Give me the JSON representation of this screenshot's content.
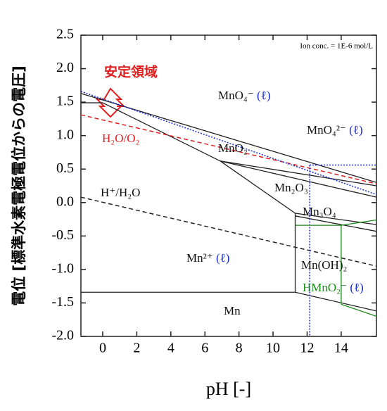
{
  "chart_data": {
    "type": "line",
    "y_label": "電位 [標準水素電極電位からの電圧]",
    "x_label": "pH [-]",
    "note": "Ion conc. = 1E-6 mol/L",
    "stable_label": "安定領域",
    "xlim": [
      -1.28,
      16.07
    ],
    "xticks": [
      0,
      2,
      4,
      6,
      8,
      10,
      12,
      14
    ],
    "ylim": [
      -2.0,
      2.5
    ],
    "yticks": [
      2.5,
      {
        "value": 2.0,
        "label": "2.0"
      },
      1.5,
      {
        "value": 1.0,
        "label": "1.0"
      },
      0.5,
      {
        "value": 0.0,
        "label": "0.0"
      },
      -0.5,
      {
        "value": -1.0,
        "label": "-1.0"
      },
      -1.5,
      {
        "value": -2.0,
        "label": "-2.0"
      }
    ],
    "series": [
      {
        "color": "#222222",
        "style": "solid",
        "x": [
          -1.28,
          16.07
        ],
        "values": [
          1.63,
          0.3
        ]
      },
      {
        "color": "#222222",
        "style": "solid",
        "x": [
          -1.28,
          0,
          6.9
        ],
        "values": [
          1.49,
          1.49,
          0.62
        ]
      },
      {
        "color": "#222222",
        "style": "solid",
        "x": [
          6.9,
          16.07
        ],
        "values": [
          0.62,
          0.25
        ]
      },
      {
        "color": "#222222",
        "style": "solid",
        "x": [
          6.9,
          16.07
        ],
        "values": [
          0.62,
          0.08
        ]
      },
      {
        "color": "#222222",
        "style": "solid",
        "x": [
          6.9,
          11.3
        ],
        "values": [
          0.62,
          -0.16
        ]
      },
      {
        "color": "#222222",
        "style": "solid",
        "x": [
          11.3,
          16.07
        ],
        "values": [
          -0.16,
          -0.33
        ]
      },
      {
        "color": "#222222",
        "style": "solid",
        "x": [
          11.3,
          16.07
        ],
        "values": [
          -0.2,
          -0.43
        ]
      },
      {
        "color": "#222222",
        "style": "solid",
        "x": [
          11.3,
          11.3
        ],
        "values": [
          -0.16,
          -1.34
        ]
      },
      {
        "color": "#222222",
        "style": "solid",
        "x": [
          -1.28,
          11.3
        ],
        "values": [
          -1.34,
          -1.34
        ]
      },
      {
        "color": "#222222",
        "style": "solid",
        "x": [
          11.3,
          16.07
        ],
        "values": [
          -1.34,
          -1.62
        ]
      },
      {
        "color": "#e02020",
        "style": "dashed",
        "x": [
          -1.28,
          16.07
        ],
        "values": [
          1.31,
          0.28
        ]
      },
      {
        "color": "#222222",
        "style": "dashed",
        "x": [
          -1.28,
          16.07
        ],
        "values": [
          0.08,
          -0.95
        ]
      },
      {
        "color": "#1a2ad8",
        "style": "dotted",
        "x": [
          -1.28,
          16.07
        ],
        "values": [
          1.66,
          0.12
        ]
      },
      {
        "color": "#1a2ad8",
        "style": "dotted",
        "x": [
          12.15,
          16.07
        ],
        "values": [
          0.56,
          0.56
        ]
      },
      {
        "color": "#1a2ad8",
        "style": "dotted",
        "x": [
          12.15,
          12.15
        ],
        "values": [
          0.56,
          -2.0
        ]
      },
      {
        "color": "#1a8a1a",
        "style": "solid",
        "x": [
          11.3,
          14,
          16.07
        ],
        "values": [
          -0.34,
          -0.34,
          -0.26
        ]
      },
      {
        "color": "#1a8a1a",
        "style": "solid",
        "x": [
          14,
          14
        ],
        "values": [
          -0.34,
          -1.52
        ]
      },
      {
        "color": "#1a8a1a",
        "style": "solid",
        "x": [
          14,
          16.07
        ],
        "values": [
          -1.52,
          -1.7
        ]
      }
    ],
    "annotations": [
      {
        "text": "MnO₄⁻",
        "state": "(ℓ)",
        "color": "#111111"
      },
      {
        "text": "MnO₄²⁻",
        "state": "(ℓ)",
        "color": "#111111"
      },
      {
        "text": "MnO₂",
        "color": "#111111"
      },
      {
        "text": "H₂O/O₂",
        "color": "#e02020"
      },
      {
        "text": "H⁺/H₂O",
        "color": "#111111"
      },
      {
        "text": "Mn₂O₃",
        "color": "#111111"
      },
      {
        "text": "Mn₃O₄",
        "color": "#111111"
      },
      {
        "text": "Mn²⁺",
        "state": "(ℓ)",
        "color": "#111111"
      },
      {
        "text": "Mn(OH)₂",
        "color": "#111111"
      },
      {
        "text": "HMnO₂⁻",
        "state": "(ℓ)",
        "color": "#1a8a1a"
      },
      {
        "text": "Mn",
        "color": "#111111"
      }
    ]
  }
}
